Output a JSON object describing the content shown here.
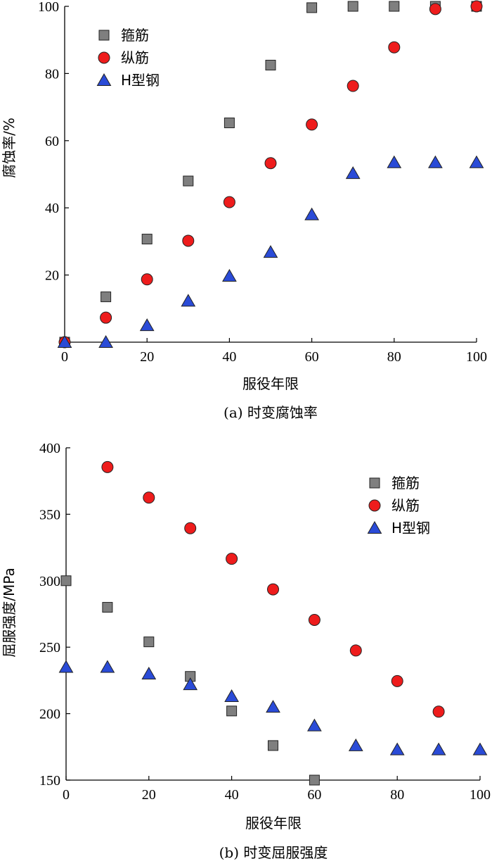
{
  "colors": {
    "stirrup": "#7f7f7f",
    "longitudinal": "#ee1c1c",
    "hsteel": "#2a4bd7"
  },
  "marker_icons": {
    "stirrup": "square-marker-icon",
    "longitudinal": "circle-marker-icon",
    "hsteel": "triangle-marker-icon"
  },
  "chart_data": [
    {
      "type": "scatter",
      "title": "",
      "caption": "(a)  时变腐蚀率",
      "xlabel": "服役年限",
      "ylabel": "腐蚀率/%",
      "xlim": [
        0,
        100
      ],
      "ylim": [
        0,
        100
      ],
      "xticks": [
        0,
        20,
        40,
        60,
        80,
        100
      ],
      "yticks": [
        20,
        40,
        60,
        80,
        100
      ],
      "legend_position": "top-left",
      "grid": false,
      "series": [
        {
          "key": "stirrup",
          "name": "箍筋",
          "marker": "square",
          "points": [
            [
              0,
              0
            ],
            [
              10,
              13.5
            ],
            [
              20,
              30.7
            ],
            [
              30,
              48
            ],
            [
              40,
              65.3
            ],
            [
              50,
              82.5
            ],
            [
              60,
              99.6
            ],
            [
              70,
              100
            ],
            [
              80,
              100
            ],
            [
              90,
              100
            ],
            [
              100,
              100
            ]
          ]
        },
        {
          "key": "longitudinal",
          "name": "纵筋",
          "marker": "circle",
          "points": [
            [
              0,
              0
            ],
            [
              10,
              7.3
            ],
            [
              20,
              18.7
            ],
            [
              30,
              30.2
            ],
            [
              40,
              41.7
            ],
            [
              50,
              53.3
            ],
            [
              60,
              64.8
            ],
            [
              70,
              76.3
            ],
            [
              80,
              87.8
            ],
            [
              90,
              99.2
            ],
            [
              100,
              100
            ]
          ]
        },
        {
          "key": "hsteel",
          "name": "H型钢",
          "marker": "triangle",
          "points": [
            [
              0,
              0
            ],
            [
              10,
              0
            ],
            [
              20,
              5
            ],
            [
              30,
              12.3
            ],
            [
              40,
              19.7
            ],
            [
              50,
              26.8
            ],
            [
              60,
              38
            ],
            [
              70,
              50.3
            ],
            [
              80,
              53.5
            ],
            [
              90,
              53.5
            ],
            [
              100,
              53.5
            ]
          ]
        }
      ]
    },
    {
      "type": "scatter",
      "title": "",
      "caption": "(b)  时变屈服强度",
      "xlabel": "服役年限",
      "ylabel": "屈服强度/MPa",
      "xlim": [
        0,
        100
      ],
      "ylim": [
        150,
        400
      ],
      "xticks": [
        0,
        20,
        40,
        60,
        80,
        100
      ],
      "yticks": [
        150,
        200,
        250,
        300,
        350,
        400
      ],
      "legend_position": "top-right",
      "grid": false,
      "series": [
        {
          "key": "stirrup",
          "name": "箍筋",
          "marker": "square",
          "points": [
            [
              0,
              300
            ],
            [
              10,
              280
            ],
            [
              20,
              254
            ],
            [
              30,
              228
            ],
            [
              40,
              202
            ],
            [
              50,
              176
            ],
            [
              60,
              150
            ]
          ]
        },
        {
          "key": "longitudinal",
          "name": "纵筋",
          "marker": "circle",
          "points": [
            [
              10,
              385.5
            ],
            [
              20,
              362.5
            ],
            [
              30,
              339.5
            ],
            [
              40,
              316.5
            ],
            [
              50,
              293.5
            ],
            [
              60,
              270.5
            ],
            [
              70,
              247.5
            ],
            [
              80,
              224.5
            ],
            [
              90,
              201.5
            ]
          ]
        },
        {
          "key": "hsteel",
          "name": "H型钢",
          "marker": "triangle",
          "points": [
            [
              0,
              235
            ],
            [
              10,
              235
            ],
            [
              20,
              230
            ],
            [
              30,
              222
            ],
            [
              40,
              213
            ],
            [
              50,
              205
            ],
            [
              60,
              191
            ],
            [
              70,
              176
            ],
            [
              80,
              173
            ],
            [
              90,
              173
            ],
            [
              100,
              173
            ]
          ]
        }
      ]
    }
  ]
}
